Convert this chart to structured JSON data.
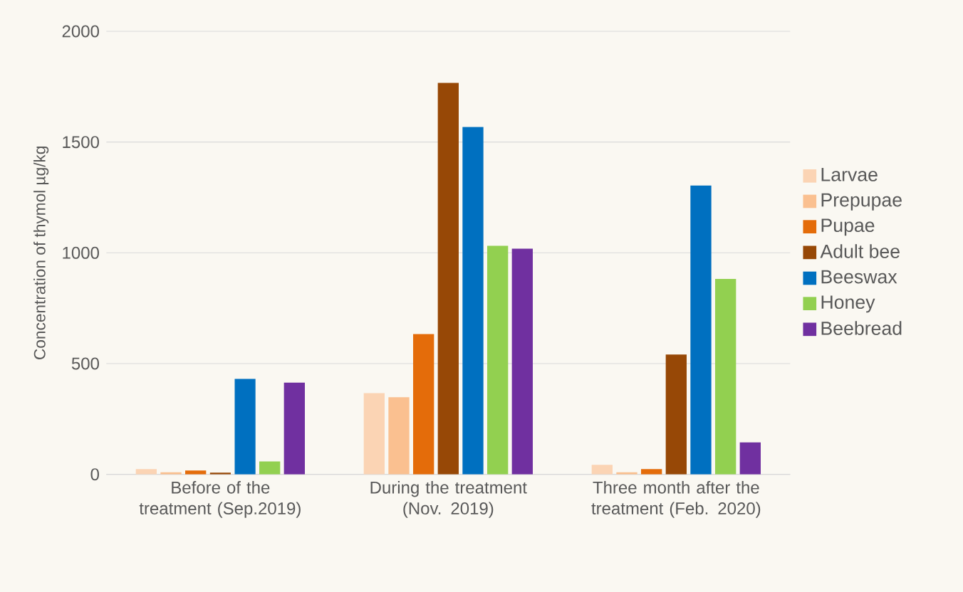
{
  "chart_data": {
    "type": "bar",
    "ylabel": "Concentration of thymol µg/kg",
    "categories": [
      "Before of the treatment (Sep.2019)",
      "During the treatment (Nov. 2019)",
      "Three month after the treatment (Feb. 2020)"
    ],
    "series": [
      {
        "name": "Larvae",
        "color": "#fbd4b4",
        "values": [
          24,
          367,
          43
        ]
      },
      {
        "name": "Prepupae",
        "color": "#fac090",
        "values": [
          9,
          348,
          9
        ]
      },
      {
        "name": "Pupae",
        "color": "#e46c0a",
        "values": [
          17,
          633,
          24
        ]
      },
      {
        "name": "Adult bee",
        "color": "#974806",
        "values": [
          8,
          1767,
          541
        ]
      },
      {
        "name": "Beeswax",
        "color": "#0070c0",
        "values": [
          431,
          1568,
          1304
        ]
      },
      {
        "name": "Honey",
        "color": "#92d050",
        "values": [
          58,
          1032,
          882
        ]
      },
      {
        "name": "Beebread",
        "color": "#7030a0",
        "values": [
          414,
          1019,
          144
        ]
      }
    ],
    "ylim": [
      0,
      2000
    ],
    "yticks": [
      0,
      500,
      1000,
      1500,
      2000
    ],
    "grid": "y",
    "legend": "right"
  }
}
